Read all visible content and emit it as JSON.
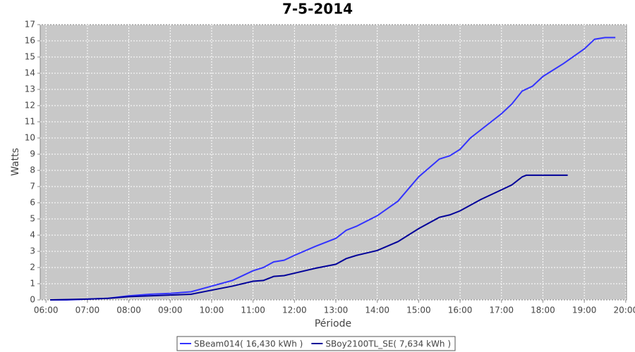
{
  "chart_data": {
    "type": "line",
    "title": "7-5-2014",
    "x_label": "Période",
    "y_label": "Watts",
    "xlim": [
      5.86,
      20.02
    ],
    "ylim": [
      0,
      17
    ],
    "xticks": [
      {
        "value": 6,
        "label": "06:00"
      },
      {
        "value": 7,
        "label": "07:00"
      },
      {
        "value": 8,
        "label": "08:00"
      },
      {
        "value": 9,
        "label": "09:00"
      },
      {
        "value": 10,
        "label": "10:00"
      },
      {
        "value": 11,
        "label": "11:00"
      },
      {
        "value": 12,
        "label": "12:00"
      },
      {
        "value": 13,
        "label": "13:00"
      },
      {
        "value": 14,
        "label": "14:00"
      },
      {
        "value": 15,
        "label": "15:00"
      },
      {
        "value": 16,
        "label": "16:00"
      },
      {
        "value": 17,
        "label": "17:00"
      },
      {
        "value": 18,
        "label": "18:00"
      },
      {
        "value": 19,
        "label": "19:00"
      },
      {
        "value": 20,
        "label": "20:00"
      }
    ],
    "yticks": [
      0,
      1,
      2,
      3,
      4,
      5,
      6,
      7,
      8,
      9,
      10,
      11,
      12,
      13,
      14,
      15,
      16,
      17
    ],
    "grid": true,
    "legend": "bottom",
    "series": [
      {
        "name": "SBeam014( 16,430 kWh )",
        "color": "#3333ff",
        "x": [
          6.1,
          6.5,
          7,
          7.5,
          8,
          8.5,
          9,
          9.5,
          10,
          10.5,
          11,
          11.25,
          11.5,
          11.75,
          12,
          12.5,
          13,
          13.25,
          13.5,
          14,
          14.5,
          15,
          15.5,
          15.75,
          16,
          16.25,
          16.5,
          17,
          17.25,
          17.5,
          17.75,
          18,
          18.5,
          19,
          19.25,
          19.5,
          19.75
        ],
        "values": [
          0,
          0,
          0.05,
          0.1,
          0.25,
          0.35,
          0.4,
          0.5,
          0.85,
          1.2,
          1.8,
          2.0,
          2.35,
          2.45,
          2.75,
          3.3,
          3.8,
          4.3,
          4.55,
          5.2,
          6.1,
          7.6,
          8.7,
          8.9,
          9.3,
          10.0,
          10.5,
          11.5,
          12.1,
          12.9,
          13.2,
          13.8,
          14.6,
          15.5,
          16.1,
          16.2,
          16.2
        ]
      },
      {
        "name": "SBoy2100TL_SE( 7,634 kWh )",
        "color": "#000099",
        "x": [
          6.1,
          7,
          7.5,
          8,
          8.5,
          9,
          9.5,
          10,
          10.5,
          11,
          11.25,
          11.5,
          11.75,
          12,
          12.5,
          13,
          13.25,
          13.5,
          14,
          14.5,
          15,
          15.5,
          15.75,
          16,
          16.5,
          16.75,
          17,
          17.25,
          17.5,
          17.6,
          18,
          18.6
        ],
        "values": [
          0,
          0.05,
          0.1,
          0.2,
          0.25,
          0.3,
          0.35,
          0.6,
          0.85,
          1.15,
          1.2,
          1.45,
          1.5,
          1.65,
          1.95,
          2.2,
          2.55,
          2.75,
          3.05,
          3.6,
          4.4,
          5.1,
          5.25,
          5.5,
          6.2,
          6.5,
          6.8,
          7.1,
          7.6,
          7.7,
          7.7,
          7.7
        ]
      }
    ]
  }
}
